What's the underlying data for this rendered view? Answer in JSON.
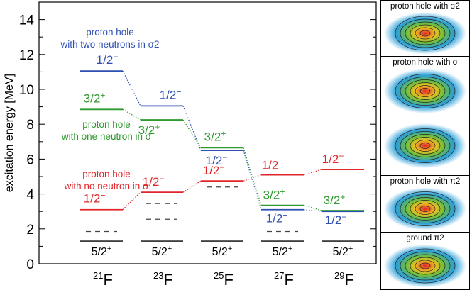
{
  "chart_data": {
    "type": "level-scheme",
    "ylabel": "excitation energy [MeV]",
    "ylim": [
      0,
      15
    ],
    "yticks": [
      "0",
      "2",
      "4",
      "6",
      "8",
      "10",
      "12",
      "14"
    ],
    "categories": [
      {
        "mass": "21",
        "element": "F"
      },
      {
        "mass": "23",
        "element": "F"
      },
      {
        "mass": "25",
        "element": "F"
      },
      {
        "mass": "27",
        "element": "F"
      },
      {
        "mass": "29",
        "element": "F"
      }
    ],
    "series": [
      {
        "name": "proton hole with two neutrons in σ2",
        "color": "#2f4fb2",
        "spin": "1/2",
        "parity": "−",
        "values": [
          11.05,
          9.05,
          6.5,
          3.1,
          3.0
        ]
      },
      {
        "name": "proton hole with one neutron in σ",
        "color": "#2f9a2f",
        "spin": "3/2",
        "parity": "+",
        "values": [
          8.85,
          8.25,
          6.65,
          3.35,
          3.05
        ]
      },
      {
        "name": "proton hole with no neutron in σ",
        "color": "#e0262b",
        "spin": "1/2",
        "parity": "−",
        "values": [
          3.1,
          4.1,
          4.75,
          5.1,
          5.4
        ]
      }
    ],
    "ground_state": {
      "spin": "5/2",
      "parity": "+",
      "values": [
        1.3,
        1.3,
        1.3,
        1.3,
        1.3
      ]
    },
    "dashed_levels": [
      [
        1.85
      ],
      [
        2.55,
        3.45
      ],
      [
        4.4
      ],
      [
        1.85
      ],
      []
    ],
    "level_labels": [
      {
        "series": 0,
        "cat": 0,
        "text": "1/2",
        "sup": "−"
      },
      {
        "series": 0,
        "cat": 1,
        "text": "1/2",
        "sup": "−"
      },
      {
        "series": 0,
        "cat": 2,
        "text": "1/2",
        "sup": "−"
      },
      {
        "series": 0,
        "cat": 3,
        "text": "1/2",
        "sup": "−"
      },
      {
        "series": 0,
        "cat": 4,
        "text": "1/2",
        "sup": "−"
      },
      {
        "series": 1,
        "cat": 0,
        "text": "3/2",
        "sup": "+"
      },
      {
        "series": 1,
        "cat": 1,
        "text": "3/2",
        "sup": "+"
      },
      {
        "series": 1,
        "cat": 2,
        "text": "3/2",
        "sup": "+"
      },
      {
        "series": 1,
        "cat": 3,
        "text": "3/2",
        "sup": "+"
      },
      {
        "series": 1,
        "cat": 4,
        "text": "3/2",
        "sup": "+"
      },
      {
        "series": 2,
        "cat": 0,
        "text": "1/2",
        "sup": "−"
      },
      {
        "series": 2,
        "cat": 1,
        "text": "1/2",
        "sup": "−"
      },
      {
        "series": 2,
        "cat": 2,
        "text": "1/2",
        "sup": "−"
      },
      {
        "series": 2,
        "cat": 3,
        "text": "1/2",
        "sup": "−"
      },
      {
        "series": 2,
        "cat": 4,
        "text": "1/2",
        "sup": "−"
      }
    ],
    "annotations": {
      "blue": {
        "line1": "proton hole",
        "line2": "with two neutrons in σ2"
      },
      "green": {
        "line1": "proton hole",
        "line2": "with one neutron in σ"
      },
      "red": {
        "line1": "proton hole",
        "line2": "with no neutron in σ"
      }
    }
  },
  "panels": [
    {
      "title": "proton hole with σ2"
    },
    {
      "title": "proton hole with σ"
    },
    {
      "title": ""
    },
    {
      "title": "proton hole with π2"
    },
    {
      "title": "ground π2"
    }
  ]
}
